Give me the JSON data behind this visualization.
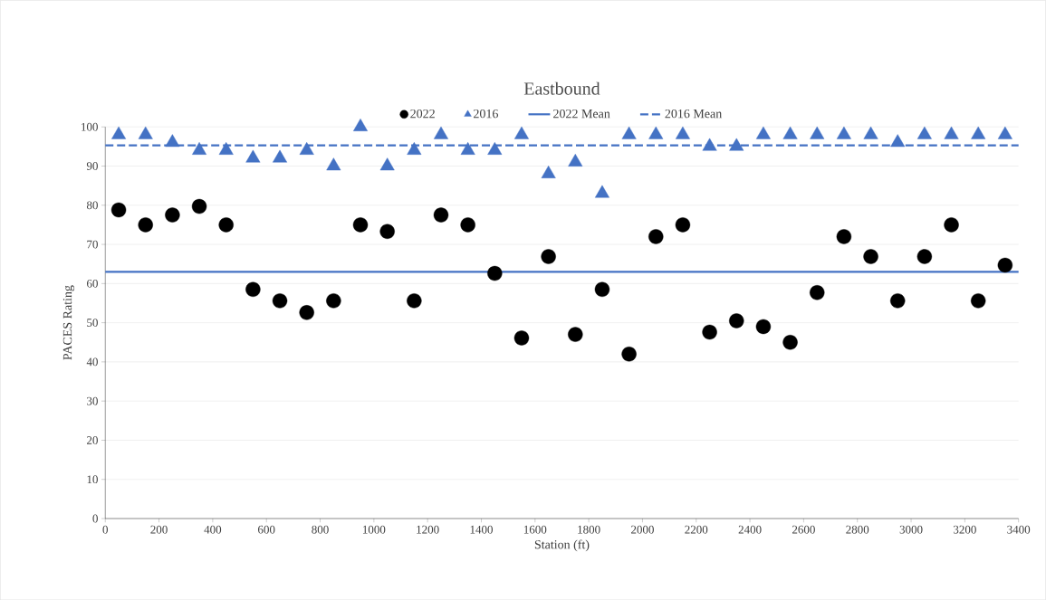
{
  "chart_data": {
    "type": "scatter",
    "title": "Eastbound",
    "xlabel": "Station (ft)",
    "ylabel": "PACES Rating",
    "x": [
      50,
      150,
      250,
      350,
      450,
      550,
      650,
      750,
      850,
      950,
      1050,
      1150,
      1250,
      1350,
      1450,
      1550,
      1650,
      1750,
      1850,
      1950,
      2050,
      2150,
      2250,
      2350,
      2450,
      2550,
      2650,
      2750,
      2850,
      2950,
      3050,
      3150,
      3250,
      3350
    ],
    "series": [
      {
        "name": "2022",
        "color": "#000000",
        "marker": "circle",
        "values": [
          78.8,
          75,
          77.5,
          79.7,
          75,
          58.5,
          55.6,
          52.6,
          55.6,
          75,
          73.3,
          55.6,
          77.5,
          75,
          62.6,
          46.1,
          66.9,
          47,
          58.5,
          42,
          72,
          75,
          47.6,
          50.5,
          49,
          45,
          57.7,
          72,
          66.9,
          55.6,
          66.9,
          75,
          55.6,
          64.7
        ]
      },
      {
        "name": "2016",
        "color": "#4472c4",
        "marker": "triangle",
        "values": [
          98,
          98,
          96,
          94,
          94,
          92,
          92,
          94,
          90,
          100,
          90,
          94,
          98,
          94,
          94,
          98,
          88,
          91,
          83,
          98,
          98,
          98,
          95,
          95,
          98,
          98,
          98,
          98,
          98,
          96,
          98,
          98,
          98,
          98
        ]
      }
    ],
    "ref_lines": [
      {
        "axis": "y",
        "value": 63,
        "label": "2022 Mean",
        "color": "#4472c4",
        "line_style": "solid"
      },
      {
        "axis": "y",
        "value": 95.3,
        "label": "2016 Mean",
        "color": "#4472c4",
        "line_style": "dashed"
      }
    ],
    "xlim": [
      0,
      3400
    ],
    "xticks": [
      0,
      200,
      400,
      600,
      800,
      1000,
      1200,
      1400,
      1600,
      1800,
      2000,
      2200,
      2400,
      2600,
      2800,
      3000,
      3200,
      3400
    ],
    "ylim": [
      0,
      100
    ],
    "yticks": [
      0,
      10,
      20,
      30,
      40,
      50,
      60,
      70,
      80,
      90,
      100
    ],
    "grid": "y",
    "legend": "top"
  }
}
